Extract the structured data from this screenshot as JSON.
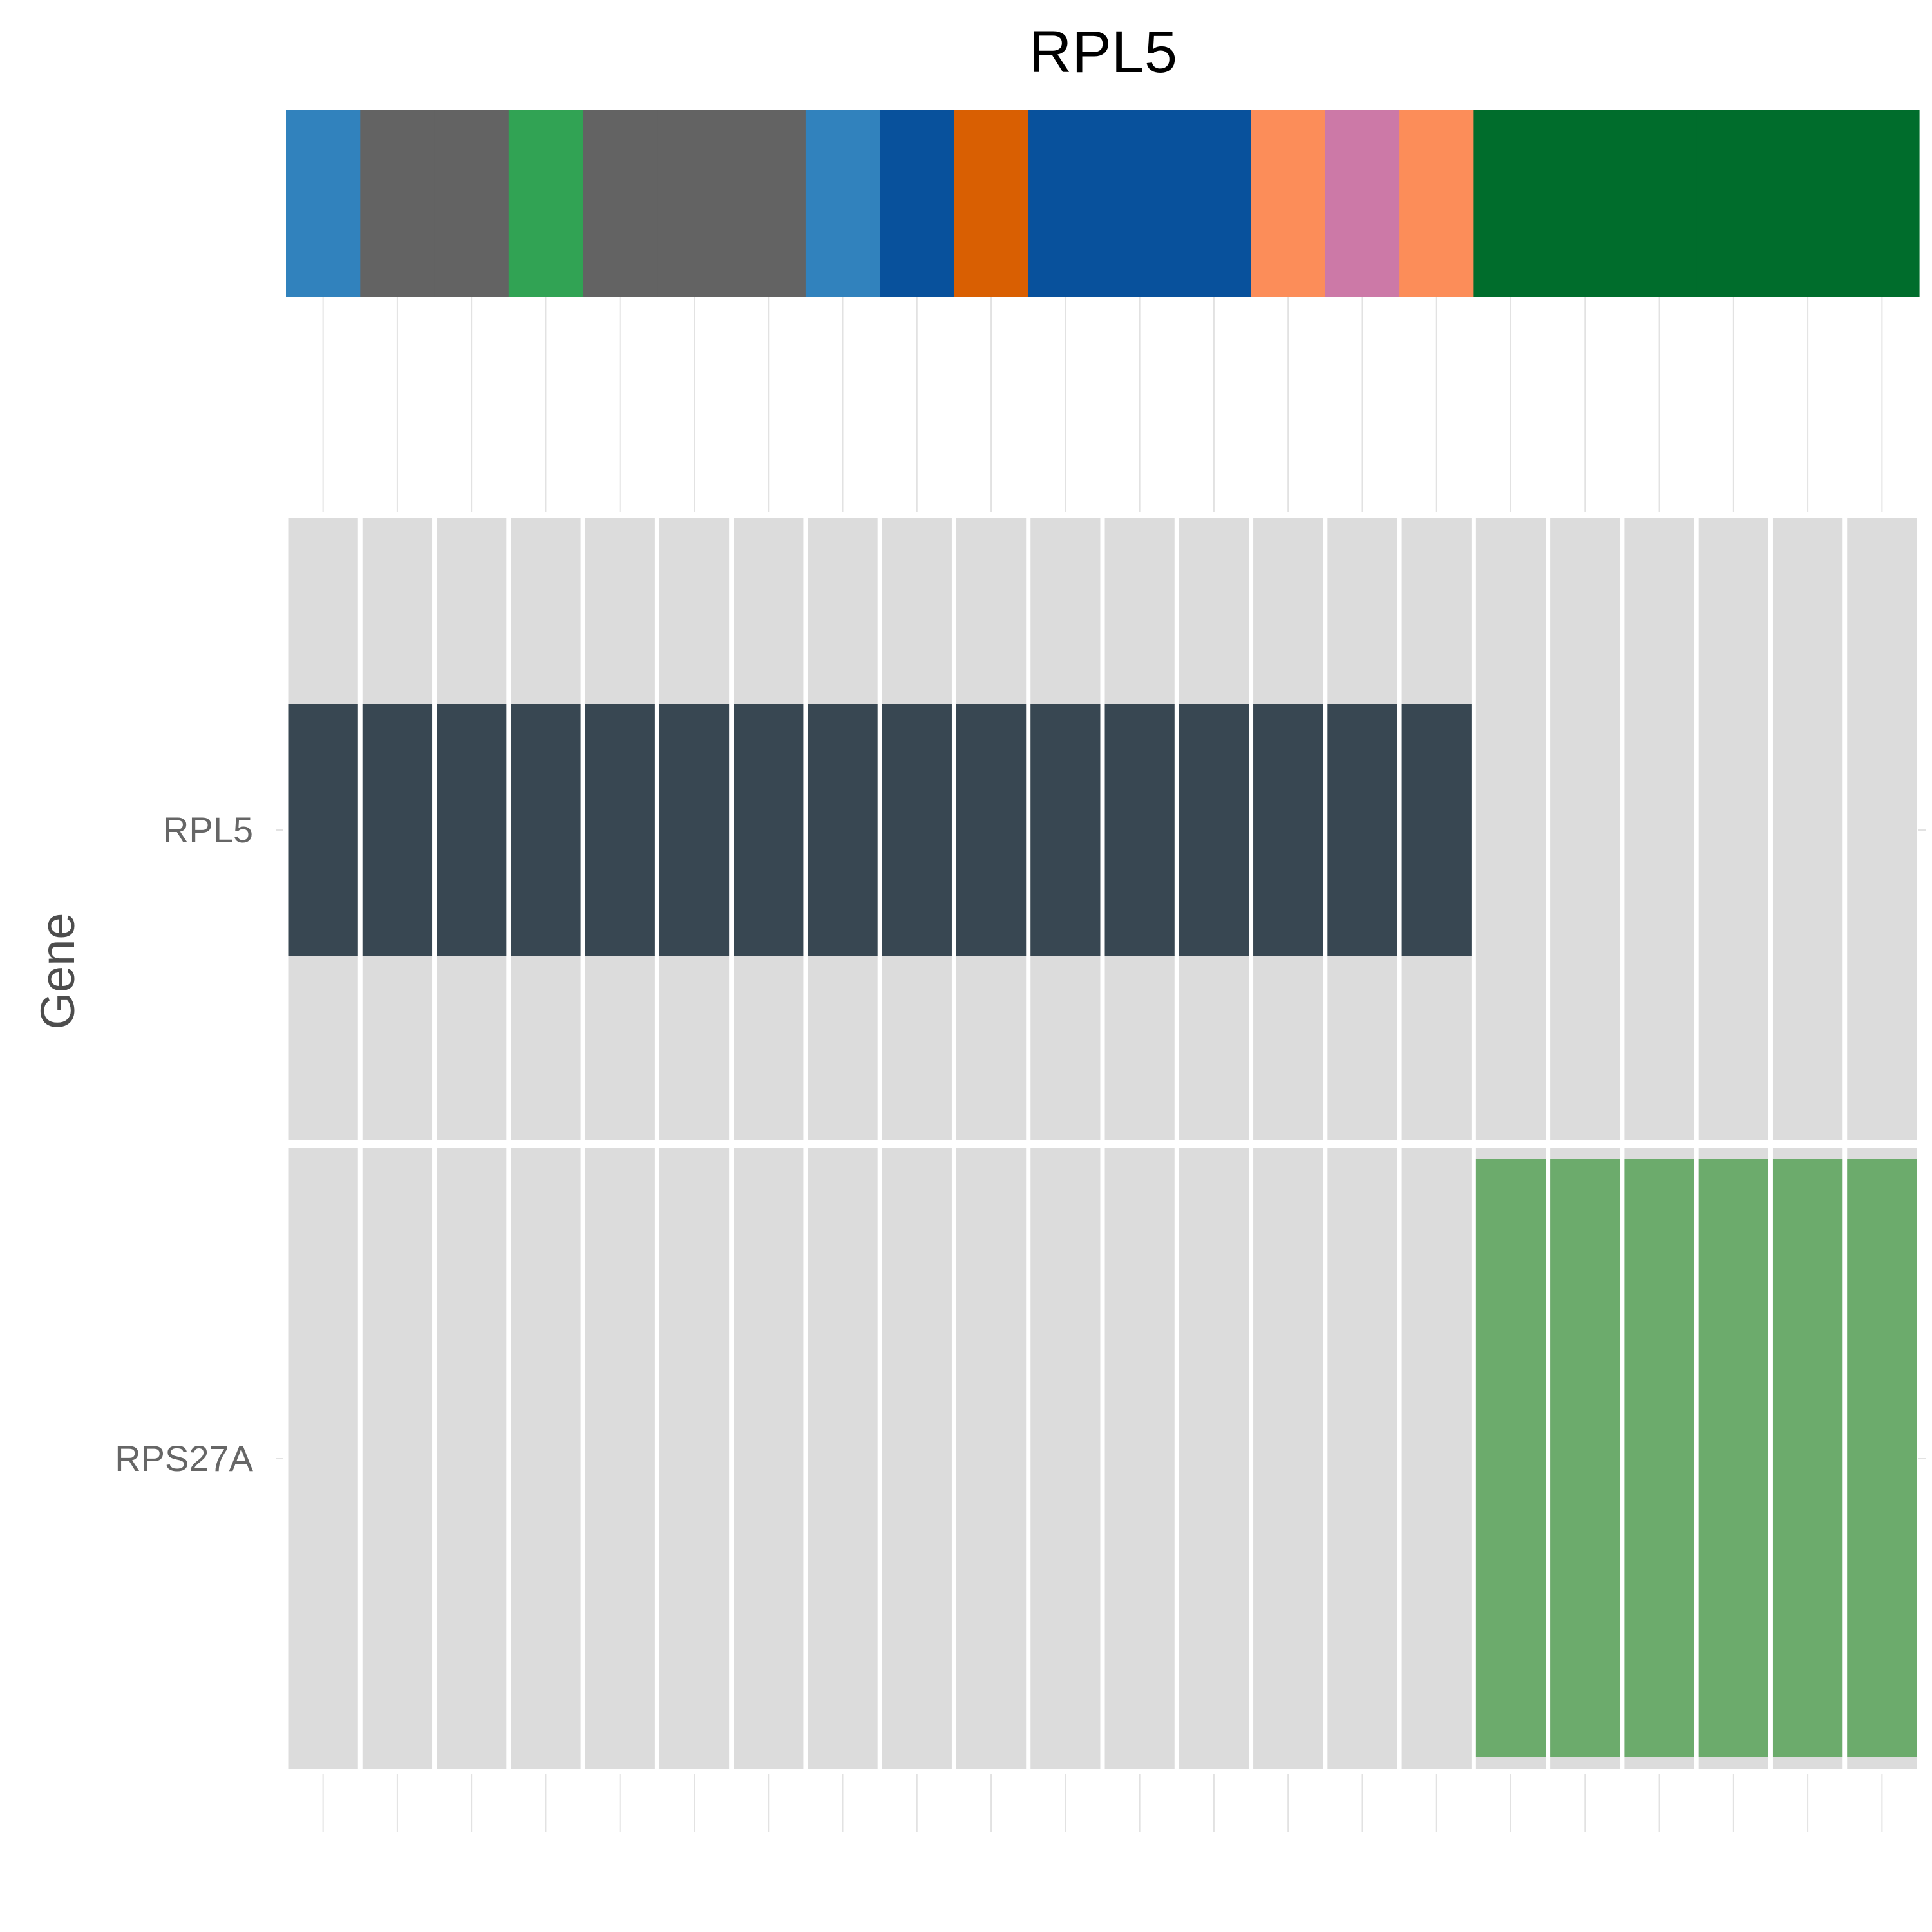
{
  "chart_data": {
    "type": "heatmap",
    "title": "RPL5",
    "ylabel": "Gene",
    "xlabel": "",
    "n_samples": 22,
    "genes": [
      "RPL5",
      "RPS27A"
    ],
    "annotation_colors": [
      "#3182bd",
      "#636363",
      "#636363",
      "#31a354",
      "#636363",
      "#636363",
      "#636363",
      "#3182bd",
      "#08519c",
      "#d95f02",
      "#08519c",
      "#08519c",
      "#08519c",
      "#fc8d59",
      "#cc79a7",
      "#fc8d59",
      "#006d2c",
      "#006d2c",
      "#006d2c",
      "#006d2c",
      "#006d2c",
      "#006d2c"
    ],
    "tiles": [
      {
        "gene": "RPL5",
        "samples_altered": [
          1,
          2,
          3,
          4,
          5,
          6,
          7,
          8,
          9,
          10,
          11,
          12,
          13,
          14,
          15,
          16
        ],
        "color": "#384752"
      },
      {
        "gene": "RPS27A",
        "samples_altered": [
          17,
          18,
          19,
          20,
          21,
          22
        ],
        "color": "#6cab6c"
      }
    ],
    "background_color": "#dcdcdc",
    "grid": true,
    "legend": "none"
  }
}
